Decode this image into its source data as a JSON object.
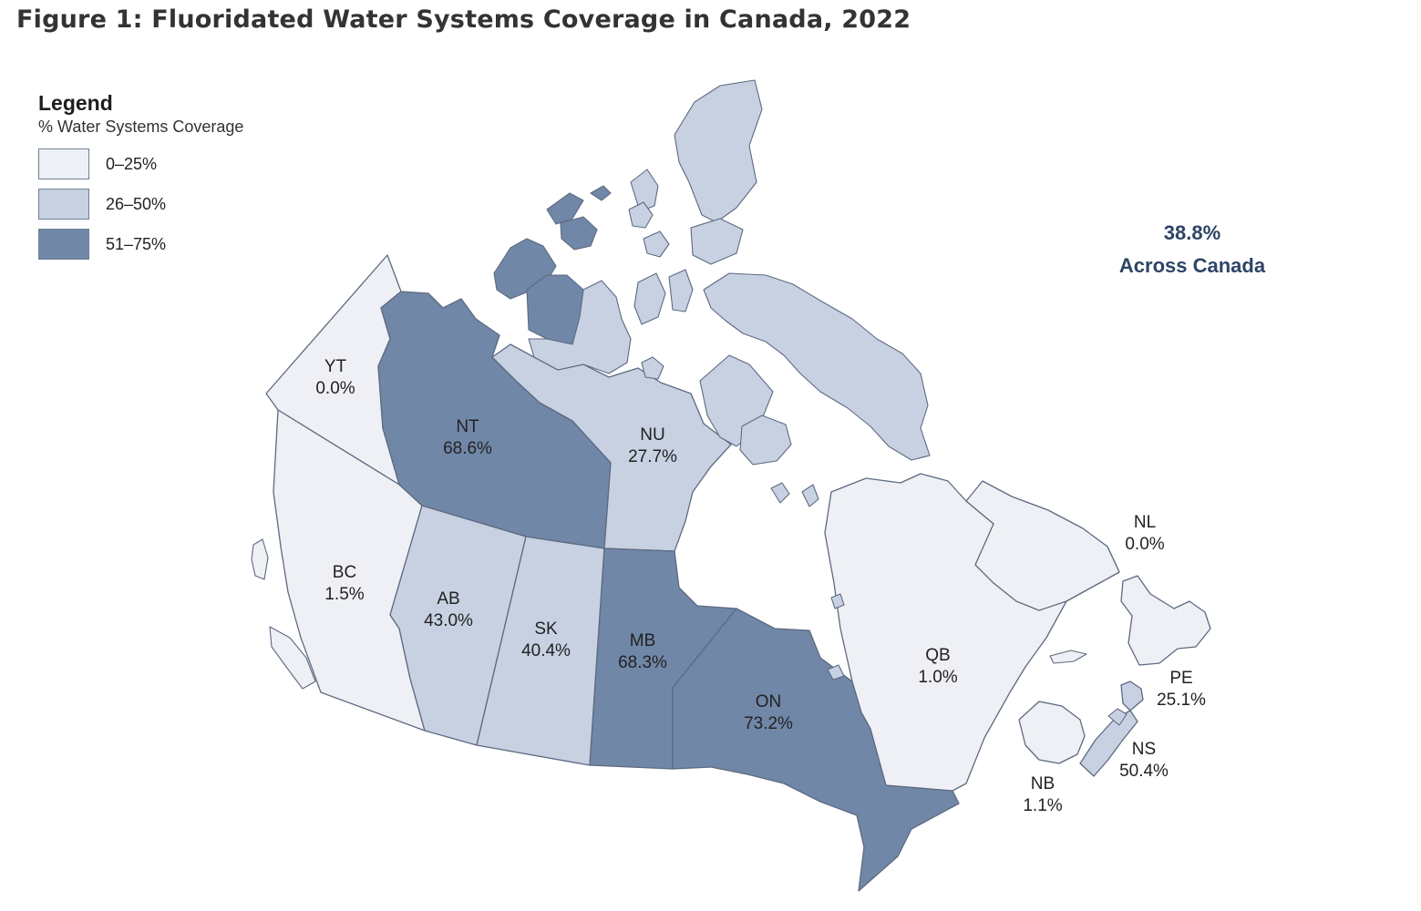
{
  "figure": {
    "title": "Figure 1: Fluoridated Water Systems Coverage in Canada, 2022"
  },
  "legend": {
    "title": "Legend",
    "subtitle": "% Water Systems Coverage",
    "items": [
      {
        "label": "0–25%",
        "color": "#eef0f5"
      },
      {
        "label": "26–50%",
        "color": "#c7d1e2"
      },
      {
        "label": "51–75%",
        "color": "#7187a8"
      }
    ]
  },
  "national": {
    "value": "38.8%",
    "label": "Across Canada"
  },
  "regions": [
    {
      "code": "YT",
      "value": "0.0%",
      "color": "#eef0f5"
    },
    {
      "code": "NT",
      "value": "68.6%",
      "color": "#7187a8"
    },
    {
      "code": "NU",
      "value": "27.7%",
      "color": "#c7d1e2"
    },
    {
      "code": "BC",
      "value": "1.5%",
      "color": "#eef0f5"
    },
    {
      "code": "AB",
      "value": "43.0%",
      "color": "#c7d1e2"
    },
    {
      "code": "SK",
      "value": "40.4%",
      "color": "#c7d1e2"
    },
    {
      "code": "MB",
      "value": "68.3%",
      "color": "#7187a8"
    },
    {
      "code": "ON",
      "value": "73.2%",
      "color": "#7187a8"
    },
    {
      "code": "QB",
      "value": "1.0%",
      "color": "#eef0f5"
    },
    {
      "code": "NL",
      "value": "0.0%",
      "color": "#eef0f5"
    },
    {
      "code": "PE",
      "value": "25.1%",
      "color": "#c7d1e2"
    },
    {
      "code": "NS",
      "value": "50.4%",
      "color": "#c7d1e2"
    },
    {
      "code": "NB",
      "value": "1.1%",
      "color": "#eef0f5"
    }
  ],
  "colors": {
    "low": "#eef0f5",
    "mid": "#c7d1e2",
    "high": "#7187a8",
    "border": "#5d6a80",
    "national_text": "#2d4465"
  }
}
